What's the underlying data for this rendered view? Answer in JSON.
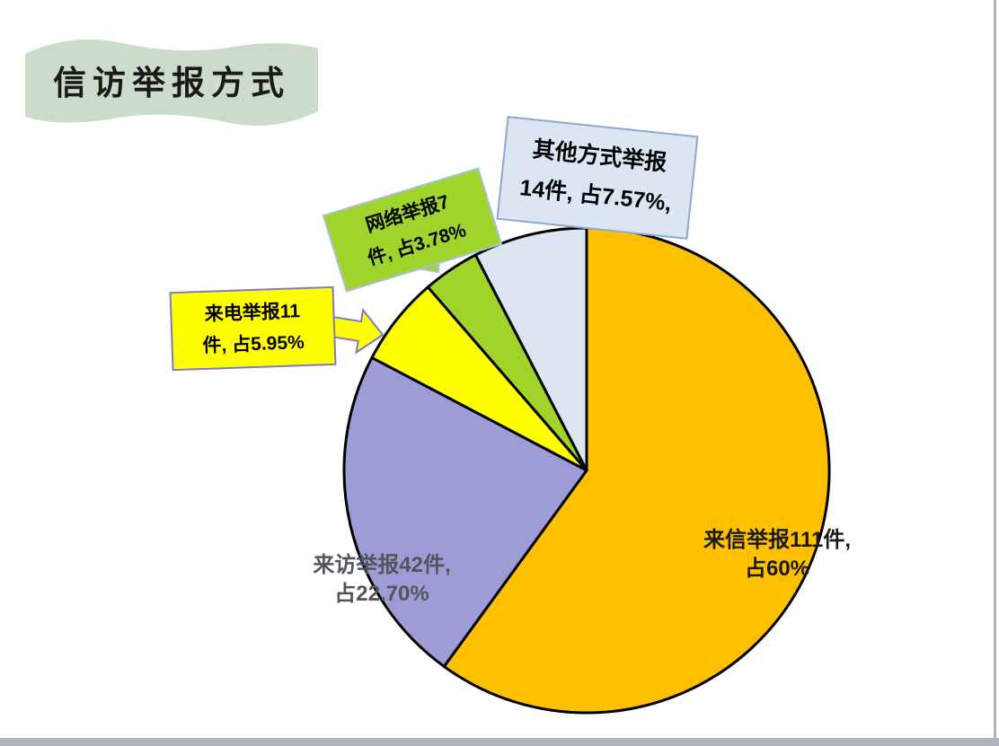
{
  "window": {
    "frame_color": "#AFB3BD"
  },
  "title": {
    "text": "信访举报方式",
    "banner_color": "#CBDCCB",
    "text_color": "#1A1A1A"
  },
  "chart_data": {
    "type": "pie",
    "title": "信访举报方式",
    "start_angle_deg": 0,
    "direction": "clockwise",
    "categories": [
      "来信举报",
      "来访举报",
      "来电举报",
      "网络举报",
      "其他方式举报"
    ],
    "category_keys": [
      "letter",
      "visit",
      "phone",
      "web",
      "other"
    ],
    "values": [
      111,
      42,
      11,
      7,
      14
    ],
    "percents": [
      60,
      22.7,
      5.95,
      3.78,
      7.57
    ],
    "colors": [
      "#FFC000",
      "#9E9CD6",
      "#FFFF00",
      "#A0D42A",
      "#DCE6F2"
    ],
    "slice_border_color": "#000000",
    "legend": "none",
    "labels_on_chart": [
      "来信举报111件, 占60%",
      "来访举报42件, 占22.70%",
      "来电举报11件, 占5.95%",
      "网络举报7件, 占3.78%",
      "其他方式举报14件, 占7.57%,"
    ]
  },
  "pie_labels": {
    "letter": {
      "line1": "来信举报111件,",
      "line2": "占60%",
      "color": "#1A1A1A"
    },
    "visit": {
      "line1": "来访举报42件,",
      "line2": "占22.70%",
      "color": "#54545C"
    }
  },
  "callouts": {
    "phone": {
      "line1": "来电举报11",
      "line2": "件, 占5.95%",
      "fill": "#FFFF00",
      "border": "#7B7BCE"
    },
    "web": {
      "line1": "网络举报7",
      "line2": "件, 占3.78%",
      "fill": "#9FD52B",
      "border": "#A9BFDF"
    },
    "other": {
      "line1": "其他方式举报",
      "line2": "14件, 占7.57%,",
      "fill": "#DCE6F3",
      "border": "#8EA8D2"
    }
  }
}
